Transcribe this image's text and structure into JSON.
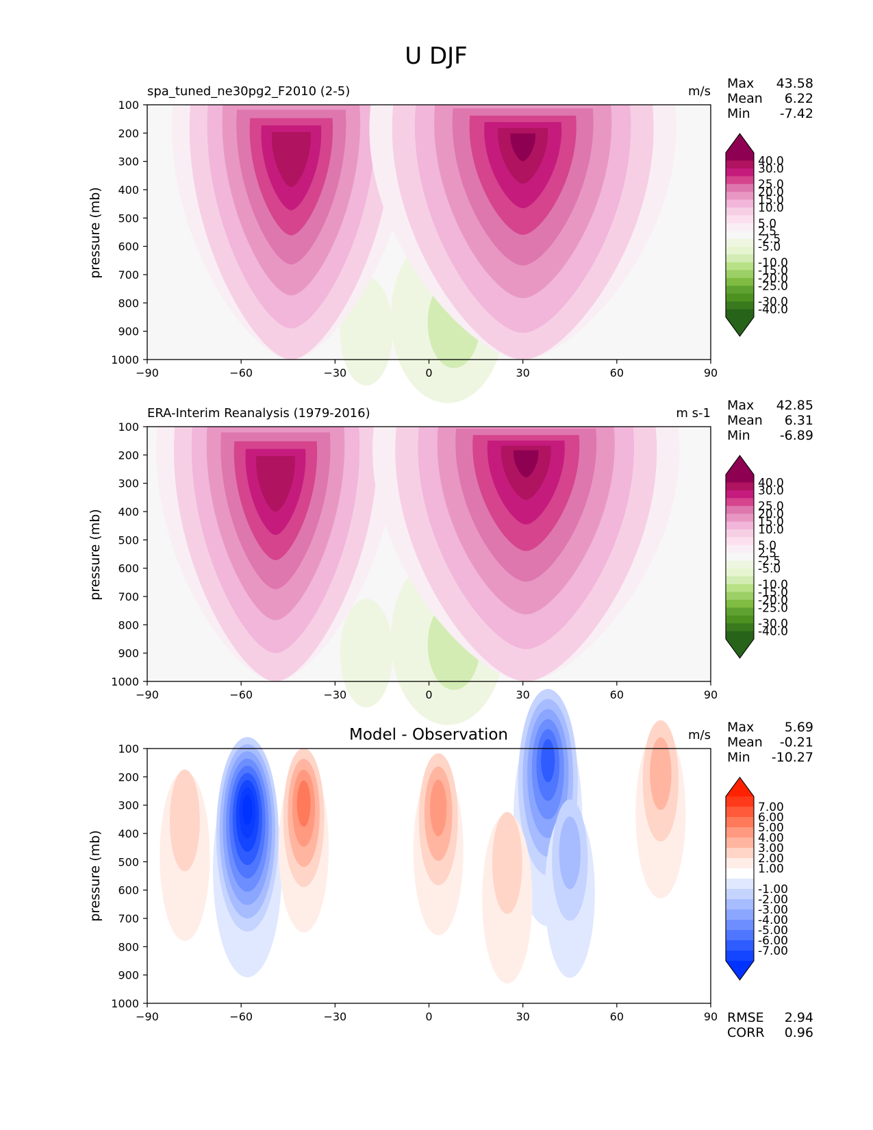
{
  "figure": {
    "title": "U DJF"
  },
  "chart_data": [
    {
      "type": "heatmap",
      "title": "spa_tuned_ne30pg2_F2010 (2-5)",
      "units": "m/s",
      "xlabel": "",
      "ylabel": "pressure (mb)",
      "xlim": [
        -90,
        90
      ],
      "ylim": [
        1000,
        100
      ],
      "xticks": [
        "−90",
        "−60",
        "−30",
        "0",
        "30",
        "60",
        "90"
      ],
      "yticks": [
        "100",
        "200",
        "300",
        "400",
        "500",
        "600",
        "700",
        "800",
        "900",
        "1000"
      ],
      "stats": [
        {
          "label": "Max",
          "value": "43.58"
        },
        {
          "label": "Mean",
          "value": "6.22"
        },
        {
          "label": "Min",
          "value": "-7.42"
        }
      ],
      "colorbar": {
        "labels": [
          "40.0",
          "30.0",
          "25.0",
          "20.0",
          "15.0",
          "10.0",
          "5.0",
          "2.5",
          "-2.5",
          "-5.0",
          "-10.0",
          "-15.0",
          "-20.0",
          "-25.0",
          "-30.0",
          "-40.0"
        ],
        "colors": [
          "#8e0152",
          "#b0135f",
          "#c51b7d",
          "#d5448d",
          "#de77ae",
          "#e897c3",
          "#f1b6da",
          "#f6cfe5",
          "#fde0ef",
          "#f9eef4",
          "#f7f7f7",
          "#eef6e1",
          "#e6f5d0",
          "#d2ecb3",
          "#b8e186",
          "#9ccf66",
          "#7fbc41",
          "#5fa232",
          "#4d9221",
          "#3a7a1e",
          "#276419"
        ],
        "endcolor_top": "#8e0152",
        "endcolor_bottom": "#276419"
      },
      "jets": [
        {
          "lat": -44,
          "p": 240,
          "peak": 35
        },
        {
          "lat": 30,
          "p": 220,
          "peak": 43.6
        }
      ]
    },
    {
      "type": "heatmap",
      "title": "ERA-Interim Reanalysis (1979-2016)",
      "units": "m s-1",
      "xlabel": "",
      "ylabel": "pressure (mb)",
      "xlim": [
        -90,
        90
      ],
      "ylim": [
        1000,
        100
      ],
      "xticks": [
        "−90",
        "−60",
        "−30",
        "0",
        "30",
        "60",
        "90"
      ],
      "yticks": [
        "100",
        "200",
        "300",
        "400",
        "500",
        "600",
        "700",
        "800",
        "900",
        "1000"
      ],
      "stats": [
        {
          "label": "Max",
          "value": "42.85"
        },
        {
          "label": "Mean",
          "value": "6.31"
        },
        {
          "label": "Min",
          "value": "-6.89"
        }
      ],
      "colorbar": {
        "labels": [
          "40.0",
          "30.0",
          "25.0",
          "20.0",
          "15.0",
          "10.0",
          "5.0",
          "2.5",
          "-2.5",
          "-5.0",
          "-10.0",
          "-15.0",
          "-20.0",
          "-25.0",
          "-30.0",
          "-40.0"
        ],
        "colors": [
          "#8e0152",
          "#b0135f",
          "#c51b7d",
          "#d5448d",
          "#de77ae",
          "#e897c3",
          "#f1b6da",
          "#f6cfe5",
          "#fde0ef",
          "#f9eef4",
          "#f7f7f7",
          "#eef6e1",
          "#e6f5d0",
          "#d2ecb3",
          "#b8e186",
          "#9ccf66",
          "#7fbc41",
          "#5fa232",
          "#4d9221",
          "#3a7a1e",
          "#276419"
        ],
        "endcolor_top": "#8e0152",
        "endcolor_bottom": "#276419"
      },
      "jets": [
        {
          "lat": -49,
          "p": 250,
          "peak": 33
        },
        {
          "lat": 31,
          "p": 200,
          "peak": 42.9
        }
      ]
    },
    {
      "type": "heatmap",
      "title": "Model - Observation",
      "units": "m/s",
      "xlabel": "",
      "ylabel": "pressure (mb)",
      "xlim": [
        -90,
        90
      ],
      "ylim": [
        1000,
        100
      ],
      "xticks": [
        "−90",
        "−60",
        "−30",
        "0",
        "30",
        "60",
        "90"
      ],
      "yticks": [
        "100",
        "200",
        "300",
        "400",
        "500",
        "600",
        "700",
        "800",
        "900",
        "1000"
      ],
      "stats": [
        {
          "label": "Max",
          "value": "5.69"
        },
        {
          "label": "Mean",
          "value": "-0.21"
        },
        {
          "label": "Min",
          "value": "-10.27"
        }
      ],
      "extra_stats": [
        {
          "label": "RMSE",
          "value": "2.94"
        },
        {
          "label": "CORR",
          "value": "0.96"
        }
      ],
      "colorbar": {
        "labels": [
          "7.00",
          "6.00",
          "5.00",
          "4.00",
          "3.00",
          "2.00",
          "1.00",
          "-1.00",
          "-2.00",
          "-3.00",
          "-4.00",
          "-5.00",
          "-6.00",
          "-7.00"
        ],
        "colors": [
          "#ff3a1a",
          "#ff5a3a",
          "#ff7a5a",
          "#ff9a80",
          "#ffb5a0",
          "#ffd5c8",
          "#ffeee8",
          "#ffffff",
          "#e0e8ff",
          "#c5d3ff",
          "#a7bcff",
          "#8aa6ff",
          "#6c8eff",
          "#4e76ff",
          "#2e5cff",
          "#1446ff"
        ],
        "endcolor_top": "#ff2200",
        "endcolor_bottom": "#0033ff"
      },
      "anomalies": [
        {
          "lat": -58,
          "p": 300,
          "v": -10.3
        },
        {
          "lat": -40,
          "p": 270,
          "v": 5.0
        },
        {
          "lat": 3,
          "p": 280,
          "v": 3.8
        },
        {
          "lat": 38,
          "p": 120,
          "v": -7.0
        },
        {
          "lat": 45,
          "p": 430,
          "v": -3.0
        },
        {
          "lat": 74,
          "p": 150,
          "v": 3.0
        },
        {
          "lat": -78,
          "p": 300,
          "v": 2.0
        },
        {
          "lat": 25,
          "p": 450,
          "v": 2.0
        }
      ]
    }
  ]
}
